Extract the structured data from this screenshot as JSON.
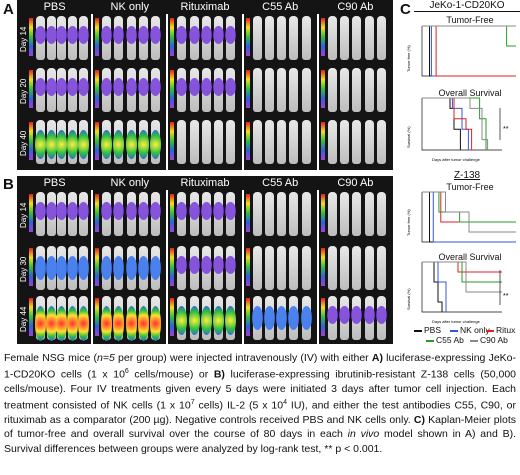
{
  "panels": {
    "A": {
      "label": "A",
      "groups": [
        "PBS",
        "NK only",
        "Rituximab",
        "C55 Ab",
        "C90 Ab"
      ],
      "days": [
        "Day 14",
        "Day 20",
        "Day 40"
      ]
    },
    "B": {
      "label": "B",
      "groups": [
        "PBS",
        "NK only",
        "Rituximab",
        "C55 Ab",
        "C90 Ab"
      ],
      "days": [
        "Day 14",
        "Day 30",
        "Day 44"
      ]
    },
    "C": {
      "label": "C",
      "jeko_title": "JeKo-1-CD20KO",
      "jeko_tumor": "Tumor-Free",
      "jeko_os": "Overall Survival",
      "z_title": "Z-138",
      "z_tumor": "Tumor-Free",
      "z_os": "Overall Survival",
      "xaxis_label": "Days after tumor challenge",
      "y_tumor": "Tumor free (%)",
      "y_survival": "Survival (%)",
      "sig": "**",
      "legend": [
        {
          "label": "PBS",
          "color": "#111111"
        },
        {
          "label": "NK only",
          "color": "#3355dd"
        },
        {
          "label": "Ritux",
          "color": "#dd2222"
        },
        {
          "label": "C55 Ab",
          "color": "#2a9a2a"
        },
        {
          "label": "C90 Ab",
          "color": "#888888"
        }
      ]
    }
  },
  "caption": {
    "p1": "Female NSG mice (",
    "n5": "n=5",
    "p2": " per group) were injected intravenously (IV) with either ",
    "A": "A)",
    "p3": " luciferase-expressing JeKo-1-CD20KO cells (1 x 10",
    "e6": "6",
    "p4": " cells/mouse) or ",
    "B": "B)",
    "p5": " luciferase-expressing ibrutinib-resistant Z-138 cells (50,000 cells/mouse). Four IV treatments given every 5 days were initiated 3 days after tumor cell injection. Each treatment consisted of NK cells (1 x 10",
    "e7": "7",
    "p6": " cells) IL-2 (5 x 10",
    "e4": "4",
    "p7": " IU), and either the test antibodies C55, C90, or rituximab as a comparator (200 µg). Negative controls received PBS and NK cells only. ",
    "C": "C)",
    "p8": " Kaplan-Meier plots of tumor-free and overall survival over the course of 80 days in each ",
    "invivo": "in vivo",
    "p9": " model shown in A) and B). Survival differences between groups were analyzed by log-rank test, ** p < 0.001."
  }
}
